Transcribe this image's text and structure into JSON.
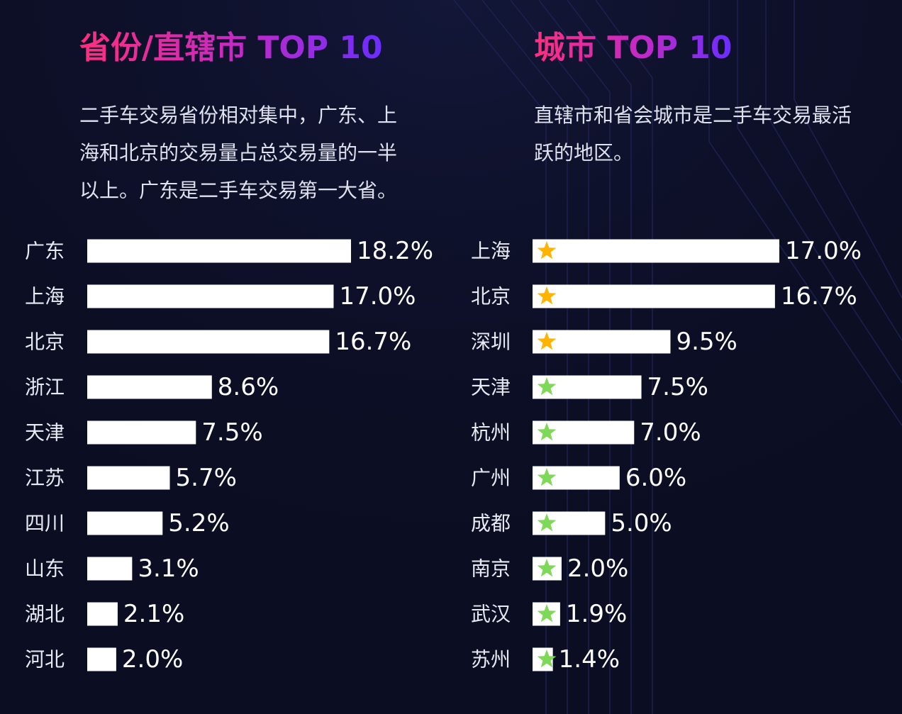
{
  "colors": {
    "background": "#0b0d22",
    "bar": "#ffffff",
    "label_text": "#e8eaf3",
    "value_text": "#ffffff",
    "title_gradient": [
      "#ff2e7e",
      "#c02ac8",
      "#6a2dff"
    ],
    "star_gold": "#ffb400",
    "star_green": "#7ed957"
  },
  "left": {
    "title": "省份/直辖市 TOP 10",
    "description": "二手车交易省份相对集中，广东、上海和北京的交易量占总交易量的一半以上。广东是二手车交易第一大省。"
  },
  "right": {
    "title": "城市 TOP 10",
    "description": "直辖市和省会城市是二手车交易最活跃的地区。"
  },
  "chart_data": [
    {
      "type": "bar",
      "orientation": "horizontal",
      "unit": "%",
      "categories": [
        "广东",
        "上海",
        "北京",
        "浙江",
        "天津",
        "江苏",
        "四川",
        "山东",
        "湖北",
        "河北"
      ],
      "values": [
        18.2,
        17.0,
        16.7,
        8.6,
        7.5,
        5.7,
        5.2,
        3.1,
        2.1,
        2.0
      ],
      "value_labels": [
        "18.2%",
        "17.0%",
        "16.7%",
        "8.6%",
        "7.5%",
        "5.7%",
        "5.2%",
        "3.1%",
        "2.1%",
        "2.0%"
      ],
      "xlim": [
        0,
        18.2
      ],
      "grid": false,
      "legend": "none"
    },
    {
      "type": "bar",
      "orientation": "horizontal",
      "unit": "%",
      "categories": [
        "上海",
        "北京",
        "深圳",
        "天津",
        "杭州",
        "广州",
        "成都",
        "南京",
        "武汉",
        "苏州"
      ],
      "values": [
        17.0,
        16.7,
        9.5,
        7.5,
        7.0,
        6.0,
        5.0,
        2.0,
        1.9,
        1.4
      ],
      "value_labels": [
        "17.0%",
        "16.7%",
        "9.5%",
        "7.5%",
        "7.0%",
        "6.0%",
        "5.0%",
        "2.0%",
        "1.9%",
        "1.4%"
      ],
      "markers": [
        "gold-star",
        "gold-star",
        "gold-star",
        "green-star",
        "green-star",
        "green-star",
        "green-star",
        "green-star",
        "green-star",
        "green-star"
      ],
      "xlim": [
        0,
        17.0
      ],
      "grid": false,
      "legend": "none"
    }
  ]
}
